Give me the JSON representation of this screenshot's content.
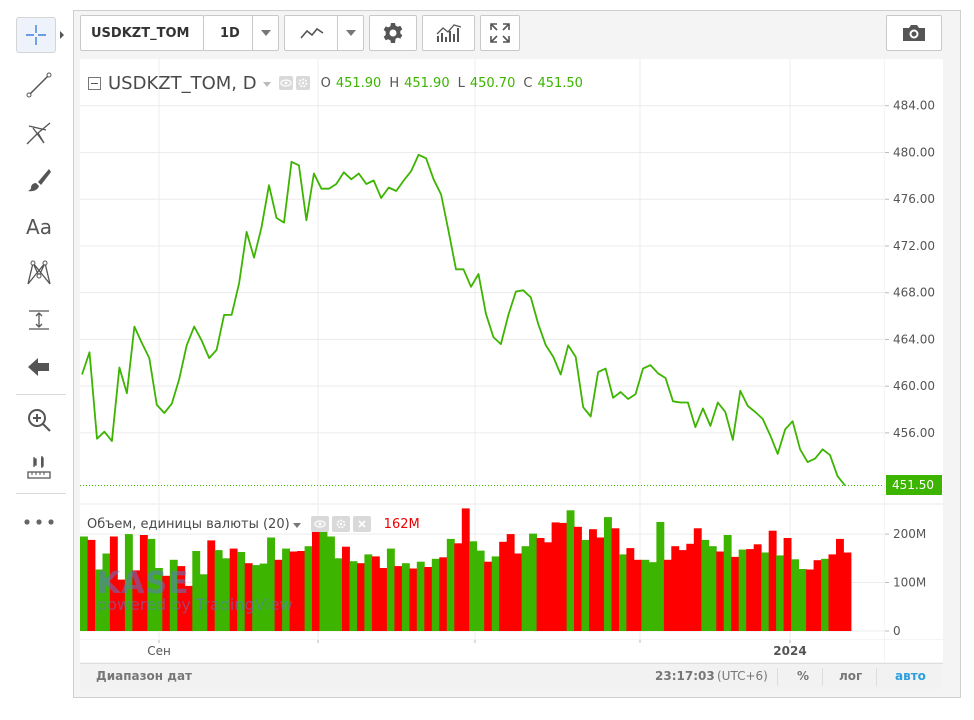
{
  "toolbar": {
    "symbol": "USDKZT_TOM",
    "interval": "1D"
  },
  "left_tools": [
    {
      "name": "crosshair-icon"
    },
    {
      "name": "trend-line-icon"
    },
    {
      "name": "pitchfork-icon"
    },
    {
      "name": "brush-icon"
    },
    {
      "name": "text-tool-icon",
      "label": "Aa"
    },
    {
      "name": "pattern-icon"
    },
    {
      "name": "measure-icon"
    },
    {
      "name": "remove-drawings-icon"
    },
    {
      "name": "zoom-icon"
    },
    {
      "name": "ruler-icon"
    },
    {
      "name": "more-icon"
    }
  ],
  "legend": {
    "symbol": "USDKZT_TOM, D",
    "o_label": "O",
    "o": "451.90",
    "h_label": "H",
    "h": "451.90",
    "l_label": "L",
    "l": "450.70",
    "c_label": "C",
    "c": "451.50"
  },
  "volume_legend": {
    "title": "Объем, единицы валюты (20)",
    "value": "162M"
  },
  "watermark": {
    "logo": "KASE",
    "sub": "powered by TradingView"
  },
  "status_bar": {
    "date_range": "Диапазон дат",
    "time": "23:17:03",
    "tz": "(UTC+6)",
    "percent": "%",
    "log": "лог",
    "auto": "авто"
  },
  "colors": {
    "line": "#3cb400",
    "up": "#3cb400",
    "down": "#ff0000",
    "auto": "#2b9fe0"
  },
  "chart_data": [
    {
      "type": "line",
      "title": "USDKZT_TOM, D",
      "ylim": [
        450,
        488
      ],
      "yticks": [
        456,
        460,
        464,
        468,
        472,
        476,
        480,
        484
      ],
      "ytick_labels": [
        "456.00",
        "460.00",
        "464.00",
        "468.00",
        "472.00",
        "476.00",
        "480.00",
        "484.00"
      ],
      "last_price_label": "451.50",
      "last_price": 451.5,
      "xtick_labels": [
        "Сен",
        "2024"
      ],
      "values": [
        461.0,
        462.9,
        455.5,
        456.1,
        455.3,
        461.6,
        459.4,
        465.1,
        463.7,
        462.4,
        458.4,
        457.7,
        458.5,
        460.6,
        463.5,
        465.1,
        463.9,
        462.4,
        463.1,
        466.1,
        466.1,
        468.8,
        473.2,
        471.0,
        473.6,
        477.2,
        474.4,
        474.0,
        479.2,
        478.9,
        474.2,
        478.2,
        476.9,
        476.9,
        477.3,
        478.3,
        477.7,
        478.2,
        477.3,
        477.6,
        476.1,
        477.0,
        476.7,
        477.6,
        478.4,
        479.8,
        479.5,
        477.7,
        476.4,
        473.3,
        470.0,
        470.0,
        468.5,
        469.6,
        466.2,
        464.2,
        463.6,
        466.1,
        468.1,
        468.2,
        467.6,
        465.3,
        463.5,
        462.5,
        461.0,
        463.5,
        462.5,
        458.2,
        457.4,
        461.2,
        461.5,
        459.0,
        459.5,
        458.9,
        459.3,
        461.5,
        461.8,
        461.1,
        460.7,
        458.7,
        458.6,
        458.6,
        456.5,
        458.1,
        456.6,
        458.6,
        457.8,
        455.4,
        459.6,
        458.3,
        457.8,
        457.2,
        455.8,
        454.2,
        456.3,
        457.0,
        454.6,
        453.5,
        453.8,
        454.6,
        454.1,
        452.3,
        451.5
      ]
    },
    {
      "type": "bar",
      "title": "Объем, единицы валюты (20)",
      "ylim": [
        0,
        260
      ],
      "yticks": [
        0,
        100,
        200
      ],
      "ytick_labels": [
        "0",
        "100M",
        "200M"
      ],
      "values": [
        195,
        188,
        127,
        160,
        195,
        106,
        200,
        125,
        198,
        190,
        130,
        114,
        147,
        134,
        93,
        165,
        117,
        187,
        167,
        150,
        170,
        163,
        140,
        136,
        139,
        193,
        147,
        170,
        164,
        165,
        175,
        212,
        210,
        195,
        150,
        174,
        144,
        140,
        158,
        154,
        130,
        170,
        134,
        140,
        129,
        143,
        132,
        149,
        152,
        190,
        181,
        253,
        185,
        166,
        143,
        154,
        184,
        200,
        160,
        175,
        201,
        192,
        183,
        224,
        223,
        249,
        215,
        188,
        210,
        193,
        235,
        212,
        158,
        171,
        147,
        147,
        142,
        225,
        147,
        175,
        167,
        180,
        212,
        188,
        175,
        164,
        198,
        153,
        168,
        169,
        179,
        162,
        207,
        156,
        192,
        148,
        128,
        127,
        146,
        149,
        158,
        190,
        162
      ],
      "directions": [
        "up",
        "down",
        "up",
        "up",
        "down",
        "down",
        "up",
        "down",
        "down",
        "up",
        "up",
        "down",
        "up",
        "down",
        "down",
        "up",
        "up",
        "down",
        "up",
        "up",
        "down",
        "up",
        "down",
        "up",
        "up",
        "up",
        "down",
        "up",
        "down",
        "down",
        "up",
        "down",
        "up",
        "up",
        "up",
        "down",
        "up",
        "down",
        "up",
        "down",
        "down",
        "up",
        "down",
        "up",
        "down",
        "up",
        "down",
        "up",
        "down",
        "up",
        "down",
        "down",
        "up",
        "up",
        "down",
        "up",
        "down",
        "down",
        "down",
        "up",
        "up",
        "down",
        "down",
        "down",
        "down",
        "up",
        "down",
        "up",
        "down",
        "down",
        "up",
        "down",
        "up",
        "down",
        "down",
        "up",
        "up",
        "up",
        "down",
        "down",
        "down",
        "down",
        "down",
        "up",
        "up",
        "down",
        "up",
        "down",
        "up",
        "down",
        "down",
        "up",
        "down",
        "up",
        "down",
        "up",
        "up",
        "down",
        "down",
        "up",
        "down",
        "down",
        "down"
      ]
    }
  ]
}
